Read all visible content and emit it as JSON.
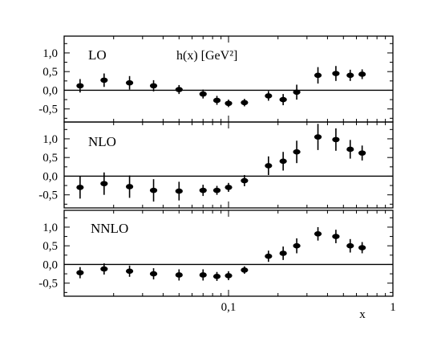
{
  "chart_data": [
    {
      "type": "scatter",
      "panel_label": "LO",
      "title": "h(x) [GeV²]",
      "xscale": "log",
      "xlim": [
        0.01,
        1
      ],
      "ylim": [
        -0.85,
        1.45
      ],
      "yticks": [
        -0.5,
        0.0,
        0.5,
        1.0
      ],
      "ytick_labels": [
        "-0,5",
        "0,0",
        "0,5",
        "1,0"
      ],
      "reference_line": 0,
      "points": [
        {
          "x": 0.0125,
          "y": 0.12,
          "err": 0.18
        },
        {
          "x": 0.0175,
          "y": 0.27,
          "err": 0.18
        },
        {
          "x": 0.025,
          "y": 0.2,
          "err": 0.18
        },
        {
          "x": 0.035,
          "y": 0.12,
          "err": 0.15
        },
        {
          "x": 0.05,
          "y": 0.02,
          "err": 0.12
        },
        {
          "x": 0.07,
          "y": -0.1,
          "err": 0.12
        },
        {
          "x": 0.085,
          "y": -0.27,
          "err": 0.12
        },
        {
          "x": 0.1,
          "y": -0.35,
          "err": 0.1
        },
        {
          "x": 0.125,
          "y": -0.33,
          "err": 0.1
        },
        {
          "x": 0.175,
          "y": -0.15,
          "err": 0.13
        },
        {
          "x": 0.215,
          "y": -0.25,
          "err": 0.15
        },
        {
          "x": 0.26,
          "y": -0.05,
          "err": 0.2
        },
        {
          "x": 0.35,
          "y": 0.4,
          "err": 0.22
        },
        {
          "x": 0.45,
          "y": 0.45,
          "err": 0.2
        },
        {
          "x": 0.55,
          "y": 0.4,
          "err": 0.15
        },
        {
          "x": 0.65,
          "y": 0.43,
          "err": 0.13
        }
      ]
    },
    {
      "type": "scatter",
      "panel_label": "NLO",
      "xscale": "log",
      "xlim": [
        0.01,
        1
      ],
      "ylim": [
        -0.85,
        1.45
      ],
      "yticks": [
        -0.5,
        0.0,
        0.5,
        1.0
      ],
      "ytick_labels": [
        "-0,5",
        "0,0",
        "0,5",
        "1,0"
      ],
      "reference_line": 0,
      "points": [
        {
          "x": 0.0125,
          "y": -0.3,
          "err": 0.3
        },
        {
          "x": 0.0175,
          "y": -0.2,
          "err": 0.3
        },
        {
          "x": 0.025,
          "y": -0.28,
          "err": 0.3
        },
        {
          "x": 0.035,
          "y": -0.38,
          "err": 0.3
        },
        {
          "x": 0.05,
          "y": -0.4,
          "err": 0.25
        },
        {
          "x": 0.07,
          "y": -0.38,
          "err": 0.15
        },
        {
          "x": 0.085,
          "y": -0.38,
          "err": 0.12
        },
        {
          "x": 0.1,
          "y": -0.3,
          "err": 0.12
        },
        {
          "x": 0.125,
          "y": -0.12,
          "err": 0.15
        },
        {
          "x": 0.175,
          "y": 0.28,
          "err": 0.25
        },
        {
          "x": 0.215,
          "y": 0.4,
          "err": 0.25
        },
        {
          "x": 0.26,
          "y": 0.65,
          "err": 0.3
        },
        {
          "x": 0.35,
          "y": 1.05,
          "err": 0.35
        },
        {
          "x": 0.45,
          "y": 0.98,
          "err": 0.3
        },
        {
          "x": 0.55,
          "y": 0.72,
          "err": 0.25
        },
        {
          "x": 0.65,
          "y": 0.62,
          "err": 0.2
        }
      ]
    },
    {
      "type": "scatter",
      "panel_label": "NNLO",
      "xscale": "log",
      "xlim": [
        0.01,
        1
      ],
      "ylim": [
        -0.85,
        1.45
      ],
      "yticks": [
        -0.5,
        0.0,
        0.5,
        1.0
      ],
      "ytick_labels": [
        "-0,5",
        "0,0",
        "0,5",
        "1,0"
      ],
      "xticks": [
        0.1,
        1
      ],
      "xtick_labels": [
        "0,1",
        "1"
      ],
      "xlabel": "x",
      "reference_line": 0,
      "points": [
        {
          "x": 0.0125,
          "y": -0.22,
          "err": 0.15
        },
        {
          "x": 0.0175,
          "y": -0.12,
          "err": 0.15
        },
        {
          "x": 0.025,
          "y": -0.18,
          "err": 0.15
        },
        {
          "x": 0.035,
          "y": -0.25,
          "err": 0.15
        },
        {
          "x": 0.05,
          "y": -0.28,
          "err": 0.15
        },
        {
          "x": 0.07,
          "y": -0.28,
          "err": 0.15
        },
        {
          "x": 0.085,
          "y": -0.32,
          "err": 0.12
        },
        {
          "x": 0.1,
          "y": -0.3,
          "err": 0.12
        },
        {
          "x": 0.125,
          "y": -0.15,
          "err": 0.1
        },
        {
          "x": 0.175,
          "y": 0.22,
          "err": 0.15
        },
        {
          "x": 0.215,
          "y": 0.3,
          "err": 0.18
        },
        {
          "x": 0.26,
          "y": 0.5,
          "err": 0.2
        },
        {
          "x": 0.35,
          "y": 0.82,
          "err": 0.18
        },
        {
          "x": 0.45,
          "y": 0.75,
          "err": 0.18
        },
        {
          "x": 0.55,
          "y": 0.5,
          "err": 0.18
        },
        {
          "x": 0.65,
          "y": 0.45,
          "err": 0.15
        }
      ]
    }
  ]
}
